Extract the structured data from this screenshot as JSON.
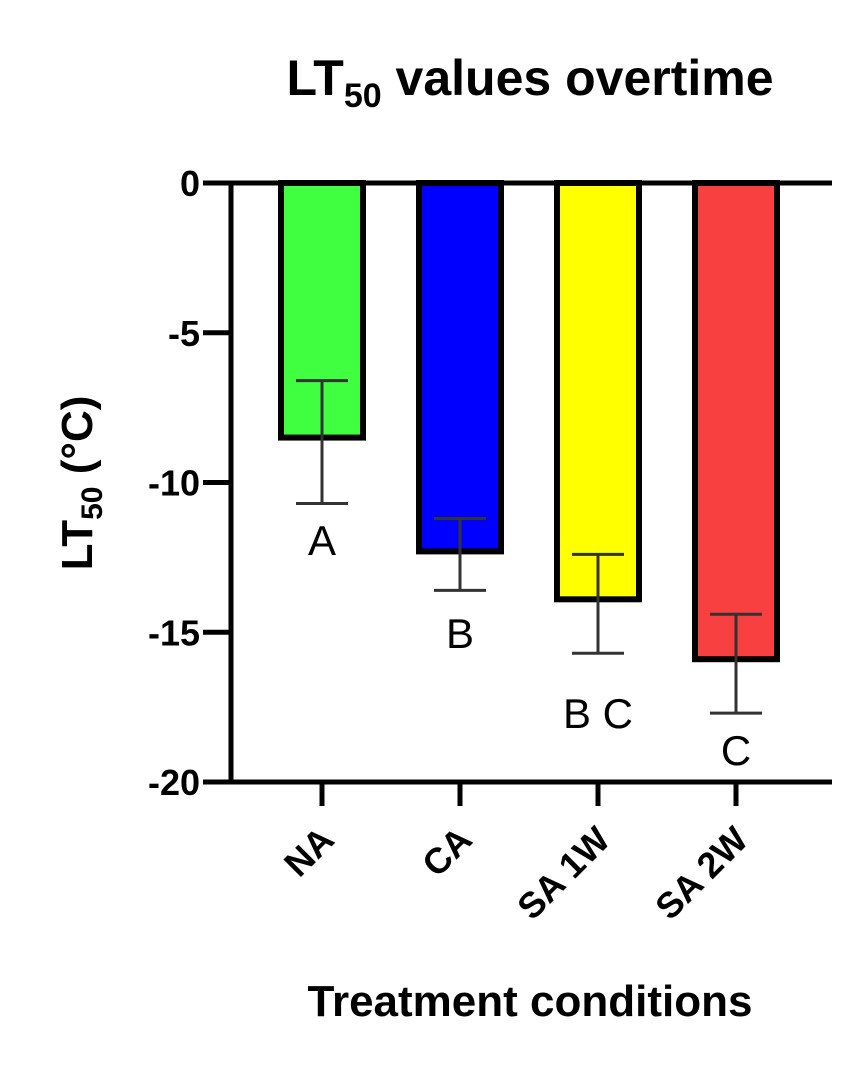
{
  "chart_data": {
    "type": "bar",
    "title": {
      "main": "LT",
      "sub": "50",
      "rest": " values overtime"
    },
    "ylabel": {
      "main": "LT",
      "sub": "50",
      "rest": " (°C)"
    },
    "xlabel": "Treatment conditions",
    "categories": [
      "NA",
      "CA",
      "SA 1W",
      "SA 2W"
    ],
    "values": [
      -8.5,
      -12.3,
      -13.9,
      -15.9
    ],
    "error_upper": [
      -6.6,
      -11.2,
      -12.4,
      -14.4
    ],
    "error_lower": [
      -10.7,
      -13.6,
      -15.7,
      -17.7
    ],
    "significance": [
      "A",
      "B",
      "B C",
      "C"
    ],
    "colors": [
      "#40ff40",
      "#0000ff",
      "#ffff00",
      "#f94040"
    ],
    "ylim": [
      -20,
      0
    ],
    "yticks": [
      0,
      -5,
      -10,
      -15,
      -20
    ],
    "ytick_labels": [
      "0",
      "-5",
      "-10",
      "-15",
      "-20"
    ],
    "grid": false,
    "legend": "none"
  }
}
